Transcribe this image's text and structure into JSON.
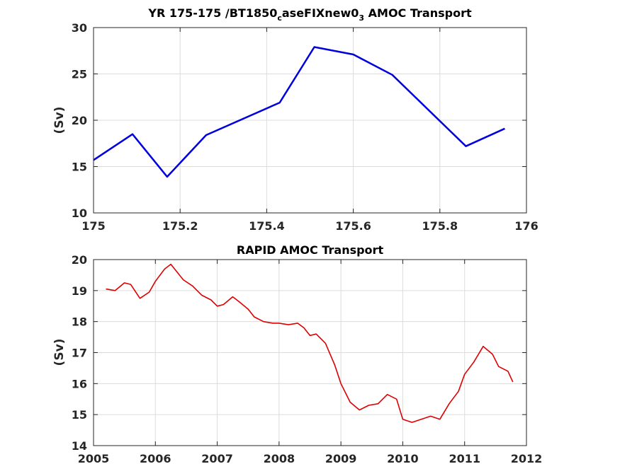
{
  "chart_data": [
    {
      "type": "line",
      "title_parts": [
        "YR 175-175 /BT1850",
        "c",
        "aseFIXnew0",
        "3",
        " AMOC Transport"
      ],
      "xlabel": "",
      "ylabel": "(Sv)",
      "xlim": [
        175,
        176
      ],
      "ylim": [
        10,
        30
      ],
      "xticks": [
        175,
        175.2,
        175.4,
        175.6,
        175.8,
        176
      ],
      "yticks": [
        10,
        15,
        20,
        25,
        30
      ],
      "grid": true,
      "series": [
        {
          "color": "#0000dd",
          "x": [
            175.0,
            175.09,
            175.17,
            175.26,
            175.43,
            175.51,
            175.6,
            175.69,
            175.86,
            175.95
          ],
          "y": [
            15.7,
            18.5,
            13.9,
            18.4,
            21.9,
            27.9,
            27.1,
            24.9,
            17.2,
            19.1
          ]
        }
      ]
    },
    {
      "type": "line",
      "title": "RAPID AMOC Transport",
      "xlabel": "",
      "ylabel": "(Sv)",
      "xlim": [
        2005,
        2012
      ],
      "ylim": [
        14,
        20
      ],
      "xticks": [
        2005,
        2006,
        2007,
        2008,
        2009,
        2010,
        2011,
        2012
      ],
      "yticks": [
        14,
        15,
        16,
        17,
        18,
        19,
        20
      ],
      "grid": true,
      "series": [
        {
          "color": "#dd0000",
          "x": [
            2005.2,
            2005.35,
            2005.5,
            2005.6,
            2005.75,
            2005.9,
            2006.0,
            2006.15,
            2006.25,
            2006.35,
            2006.45,
            2006.6,
            2006.75,
            2006.9,
            2007.0,
            2007.1,
            2007.25,
            2007.35,
            2007.5,
            2007.6,
            2007.75,
            2007.9,
            2008.0,
            2008.15,
            2008.3,
            2008.4,
            2008.5,
            2008.6,
            2008.75,
            2008.9,
            2009.0,
            2009.15,
            2009.3,
            2009.45,
            2009.6,
            2009.75,
            2009.9,
            2010.0,
            2010.15,
            2010.3,
            2010.45,
            2010.6,
            2010.75,
            2010.9,
            2011.0,
            2011.15,
            2011.3,
            2011.45,
            2011.55,
            2011.7,
            2011.78
          ],
          "y": [
            19.05,
            19.0,
            19.25,
            19.2,
            18.75,
            18.95,
            19.3,
            19.7,
            19.85,
            19.6,
            19.35,
            19.15,
            18.85,
            18.7,
            18.5,
            18.55,
            18.8,
            18.65,
            18.4,
            18.15,
            18.0,
            17.95,
            17.95,
            17.9,
            17.95,
            17.8,
            17.55,
            17.6,
            17.3,
            16.6,
            16.0,
            15.4,
            15.15,
            15.3,
            15.35,
            15.65,
            15.5,
            14.85,
            14.75,
            14.85,
            14.95,
            14.85,
            15.35,
            15.75,
            16.3,
            16.7,
            17.2,
            16.95,
            16.55,
            16.4,
            16.05
          ]
        }
      ]
    }
  ]
}
